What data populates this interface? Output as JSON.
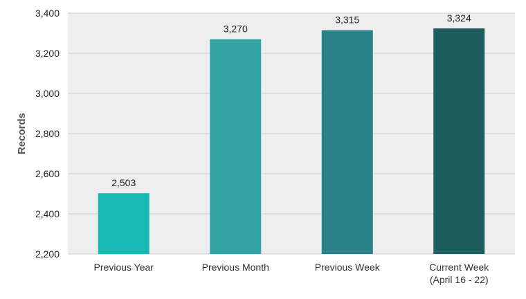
{
  "chart_data": {
    "type": "bar",
    "title": "",
    "xlabel": "",
    "ylabel": "Records",
    "ylim": [
      2200,
      3400
    ],
    "yticks": [
      2200,
      2400,
      2600,
      2800,
      3000,
      3200,
      3400
    ],
    "ytick_labels": [
      "2,200",
      "2,400",
      "2,600",
      "2,800",
      "3,000",
      "3,200",
      "3,400"
    ],
    "categories": [
      [
        "Previous Year"
      ],
      [
        "Previous Month"
      ],
      [
        "Previous Week"
      ],
      [
        "Current Week",
        "(April 16 - 22)"
      ]
    ],
    "values": [
      2503,
      3270,
      3315,
      3324
    ],
    "value_labels": [
      "2,503",
      "3,270",
      "3,315",
      "3,324"
    ],
    "colors": [
      "#17bbb4",
      "#33a3a6",
      "#2a8187",
      "#1c5f5e"
    ],
    "plot_background": "#eeeeee",
    "grid": true,
    "grid_color": "#cccccc",
    "legend": "none"
  }
}
